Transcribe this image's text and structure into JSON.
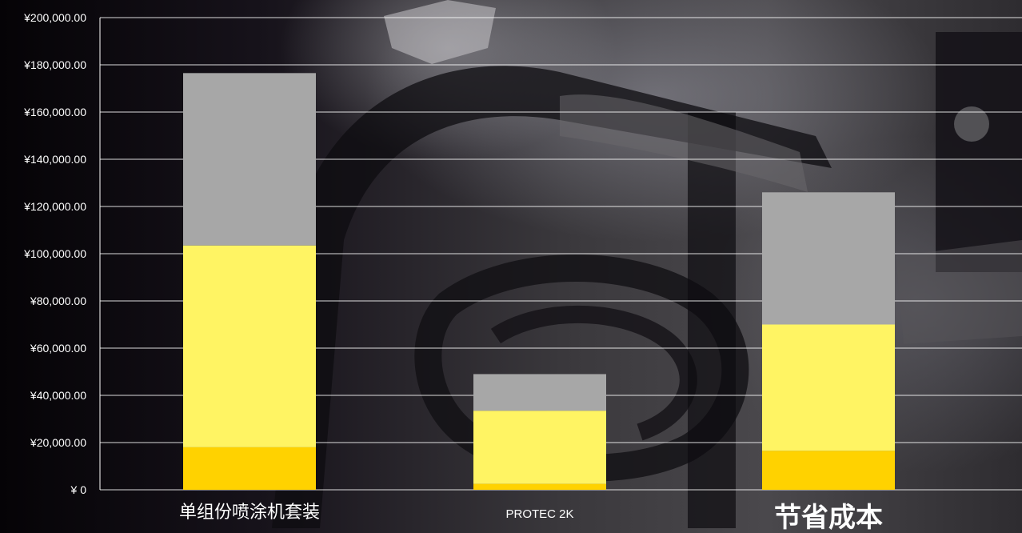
{
  "chart_data": {
    "type": "bar",
    "stacked": true,
    "categories": [
      "单组份喷涂机套装",
      "PROTEC 2K",
      "节省成本"
    ],
    "series": [
      {
        "values": [
          18000,
          2500,
          16500
        ],
        "color": "#ffd200"
      },
      {
        "values": [
          85500,
          31000,
          53500
        ],
        "color": "#fff463"
      },
      {
        "values": [
          73000,
          15500,
          56000
        ],
        "color": "#a7a7a7"
      }
    ],
    "ylim": [
      0,
      200000
    ],
    "yticks": [
      "¥ 0",
      "¥20,000.00",
      "¥40,000.00",
      "¥60,000.00",
      "¥80,000.00",
      "¥100,000.00",
      "¥120,000.00",
      "¥140,000.00",
      "¥160,000.00",
      "¥180,000.00",
      "¥200,000.00"
    ],
    "ytick_values": [
      0,
      20000,
      40000,
      60000,
      80000,
      100000,
      120000,
      140000,
      160000,
      180000,
      200000
    ],
    "grid": true,
    "highlight_category_color": "#ffd200"
  }
}
